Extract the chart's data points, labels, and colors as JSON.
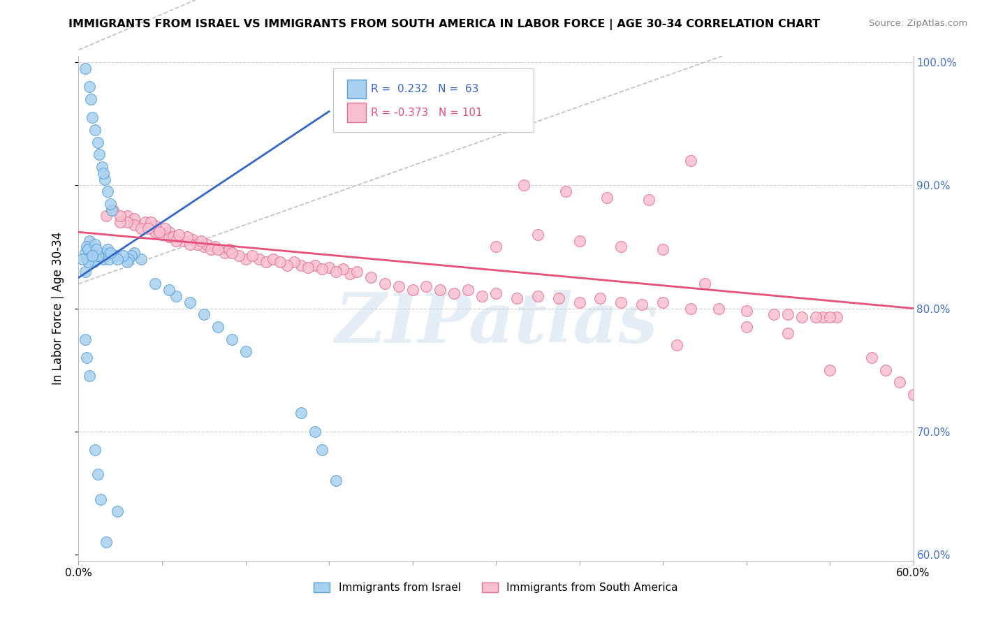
{
  "title": "IMMIGRANTS FROM ISRAEL VS IMMIGRANTS FROM SOUTH AMERICA IN LABOR FORCE | AGE 30-34 CORRELATION CHART",
  "source": "Source: ZipAtlas.com",
  "ylabel": "In Labor Force | Age 30-34",
  "xlim": [
    0.0,
    0.6
  ],
  "ylim": [
    0.595,
    1.005
  ],
  "legend_israel": {
    "R": "0.232",
    "N": "63"
  },
  "legend_south_america": {
    "R": "-0.373",
    "N": "101"
  },
  "israel_color": "#a8d0f0",
  "israel_edge_color": "#5a9fd4",
  "south_america_color": "#f8c0d0",
  "south_america_edge_color": "#e87090",
  "israel_trend_color": "#3366cc",
  "south_america_trend_color": "#e8507a",
  "reference_line_color": "#c0c0c0",
  "watermark_text": "ZIPatlas",
  "right_tick_color": "#4472c4",
  "israel_x": [
    0.003,
    0.005,
    0.005,
    0.006,
    0.006,
    0.007,
    0.007,
    0.008,
    0.008,
    0.009,
    0.009,
    0.01,
    0.01,
    0.011,
    0.012,
    0.012,
    0.013,
    0.013,
    0.014,
    0.015,
    0.016,
    0.017,
    0.018,
    0.018,
    0.019,
    0.02,
    0.021,
    0.022,
    0.023,
    0.024,
    0.025,
    0.025,
    0.026,
    0.027,
    0.028,
    0.029,
    0.03,
    0.031,
    0.032,
    0.033,
    0.035,
    0.036,
    0.038,
    0.04,
    0.042,
    0.045,
    0.048,
    0.05,
    0.055,
    0.06,
    0.065,
    0.07,
    0.08,
    0.09,
    0.1,
    0.11,
    0.12,
    0.13,
    0.145,
    0.16,
    0.17,
    0.175,
    0.185
  ],
  "israel_y": [
    0.84,
    0.83,
    0.845,
    0.85,
    0.84,
    0.838,
    0.848,
    0.842,
    0.855,
    0.837,
    0.845,
    0.843,
    0.85,
    0.838,
    0.846,
    0.852,
    0.84,
    0.848,
    0.843,
    0.845,
    0.838,
    0.843,
    0.84,
    0.848,
    0.845,
    0.843,
    0.848,
    0.84,
    0.845,
    0.848,
    0.843,
    0.848,
    0.845,
    0.843,
    0.84,
    0.843,
    0.845,
    0.848,
    0.843,
    0.84,
    0.838,
    0.84,
    0.843,
    0.845,
    0.848,
    0.84,
    0.843,
    0.845,
    0.82,
    0.818,
    0.815,
    0.81,
    0.805,
    0.795,
    0.785,
    0.775,
    0.765,
    0.755,
    0.735,
    0.715,
    0.7,
    0.685,
    0.66
  ],
  "israel_y_top": [
    0.995,
    0.99,
    0.985,
    0.98,
    0.975,
    0.97,
    0.965,
    0.96,
    0.955,
    0.95,
    0.945,
    0.94,
    0.935
  ],
  "israel_x_top": [
    0.005,
    0.006,
    0.007,
    0.008,
    0.008,
    0.009,
    0.009,
    0.01,
    0.01,
    0.011,
    0.012,
    0.013,
    0.014
  ],
  "israel_y_high": [
    0.925,
    0.92,
    0.915,
    0.91,
    0.905,
    0.9,
    0.895,
    0.89,
    0.885,
    0.88,
    0.875,
    0.87,
    0.865,
    0.86,
    0.855
  ],
  "israel_x_high": [
    0.015,
    0.016,
    0.017,
    0.018,
    0.019,
    0.02,
    0.021,
    0.022,
    0.023,
    0.024,
    0.025,
    0.026,
    0.027,
    0.028,
    0.029
  ],
  "israel_y_low": [
    0.775,
    0.76,
    0.745,
    0.73,
    0.715,
    0.7,
    0.685,
    0.665,
    0.645,
    0.62,
    0.61,
    0.605,
    0.615,
    0.625,
    0.635
  ],
  "israel_x_low": [
    0.005,
    0.006,
    0.008,
    0.009,
    0.01,
    0.011,
    0.012,
    0.014,
    0.016,
    0.018,
    0.02,
    0.022,
    0.024,
    0.026,
    0.028
  ],
  "south_america_x": [
    0.02,
    0.025,
    0.03,
    0.03,
    0.035,
    0.035,
    0.04,
    0.04,
    0.045,
    0.048,
    0.05,
    0.052,
    0.055,
    0.055,
    0.058,
    0.06,
    0.062,
    0.065,
    0.065,
    0.068,
    0.07,
    0.072,
    0.075,
    0.078,
    0.08,
    0.082,
    0.085,
    0.088,
    0.09,
    0.092,
    0.095,
    0.098,
    0.1,
    0.105,
    0.108,
    0.11,
    0.115,
    0.12,
    0.125,
    0.13,
    0.135,
    0.14,
    0.145,
    0.15,
    0.155,
    0.16,
    0.165,
    0.17,
    0.175,
    0.18,
    0.185,
    0.19,
    0.195,
    0.2,
    0.21,
    0.22,
    0.23,
    0.24,
    0.25,
    0.26,
    0.27,
    0.28,
    0.29,
    0.3,
    0.315,
    0.33,
    0.345,
    0.36,
    0.375,
    0.39,
    0.405,
    0.42,
    0.44,
    0.46,
    0.48,
    0.5,
    0.51,
    0.52,
    0.53,
    0.535,
    0.54,
    0.545,
    0.32,
    0.35,
    0.38,
    0.41,
    0.44,
    0.3,
    0.33,
    0.36,
    0.39,
    0.42,
    0.45,
    0.48,
    0.51,
    0.54,
    0.57,
    0.58,
    0.59,
    0.6,
    0.43
  ],
  "south_america_y": [
    0.875,
    0.88,
    0.87,
    0.875,
    0.87,
    0.875,
    0.868,
    0.873,
    0.865,
    0.87,
    0.865,
    0.87,
    0.862,
    0.867,
    0.862,
    0.86,
    0.865,
    0.858,
    0.862,
    0.858,
    0.855,
    0.86,
    0.855,
    0.858,
    0.852,
    0.856,
    0.852,
    0.855,
    0.85,
    0.852,
    0.848,
    0.85,
    0.848,
    0.845,
    0.848,
    0.845,
    0.843,
    0.84,
    0.843,
    0.84,
    0.838,
    0.84,
    0.838,
    0.835,
    0.838,
    0.835,
    0.833,
    0.835,
    0.832,
    0.833,
    0.83,
    0.832,
    0.828,
    0.83,
    0.825,
    0.82,
    0.818,
    0.815,
    0.818,
    0.815,
    0.812,
    0.815,
    0.81,
    0.812,
    0.808,
    0.81,
    0.808,
    0.805,
    0.808,
    0.805,
    0.803,
    0.805,
    0.8,
    0.8,
    0.798,
    0.795,
    0.795,
    0.793,
    0.793,
    0.793,
    0.793,
    0.793,
    0.9,
    0.895,
    0.89,
    0.888,
    0.92,
    0.85,
    0.86,
    0.855,
    0.85,
    0.848,
    0.82,
    0.785,
    0.78,
    0.75,
    0.76,
    0.75,
    0.74,
    0.73,
    0.77
  ]
}
